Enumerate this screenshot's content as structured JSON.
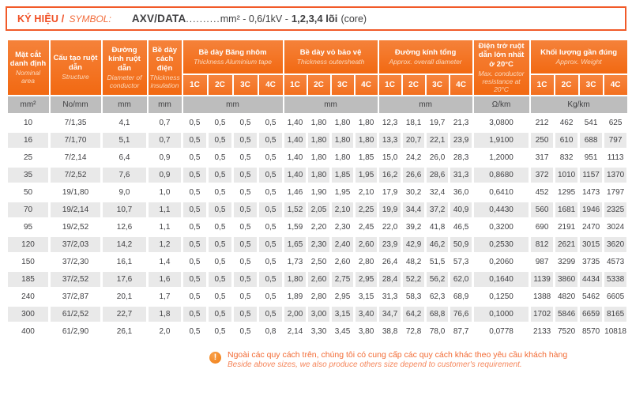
{
  "title": {
    "label_vi": "KÝ HIỆU /",
    "label_en": "SYMBOL:",
    "code": "AXV/DATA",
    "dots": "..........",
    "spec": "mm² - 0,6/1kV -",
    "cores": "1,2,3,4 lõi",
    "core_suffix": "(core)"
  },
  "table": {
    "columns": [
      {
        "vi": "Mặt cắt danh định",
        "en": "Nominal area",
        "unit": "mm²"
      },
      {
        "vi": "Cấu tạo ruột dẫn",
        "en": "Structure",
        "unit": "No/mm"
      },
      {
        "vi": "Đường kính ruột dẫn",
        "en": "Diameter of conductor",
        "unit": "mm"
      },
      {
        "vi": "Bề dày cách điện",
        "en": "Thickness insulation",
        "unit": "mm"
      },
      {
        "vi": "Bề dày Băng nhôm",
        "en": "Thickness Aluminium tape",
        "unit": "mm",
        "sub": [
          "1C",
          "2C",
          "3C",
          "4C"
        ]
      },
      {
        "vi": "Bề dày vỏ bảo vệ",
        "en": "Thickness outersheath",
        "unit": "mm",
        "sub": [
          "1C",
          "2C",
          "3C",
          "4C"
        ]
      },
      {
        "vi": "Đường kính tổng",
        "en": "Approx. overall diameter",
        "unit": "mm",
        "sub": [
          "1C",
          "2C",
          "3C",
          "4C"
        ]
      },
      {
        "vi": "Điện trở ruột dẫn lớn nhất ở 20°C",
        "en": "Max. conductor resistance at 20°C",
        "unit": "Ω/km"
      },
      {
        "vi": "Khối lượng gần đúng",
        "en": "Approx. Weight",
        "unit": "Kg/km",
        "sub": [
          "1C",
          "2C",
          "3C",
          "4C"
        ]
      }
    ],
    "rows": [
      [
        "10",
        "7/1,35",
        "4,1",
        "0,7",
        "0,5",
        "0,5",
        "0,5",
        "0,5",
        "1,40",
        "1,80",
        "1,80",
        "1,80",
        "12,3",
        "18,1",
        "19,7",
        "21,3",
        "3,0800",
        "212",
        "462",
        "541",
        "625"
      ],
      [
        "16",
        "7/1,70",
        "5,1",
        "0,7",
        "0,5",
        "0,5",
        "0,5",
        "0,5",
        "1,40",
        "1,80",
        "1,80",
        "1,80",
        "13,3",
        "20,7",
        "22,1",
        "23,9",
        "1,9100",
        "250",
        "610",
        "688",
        "797"
      ],
      [
        "25",
        "7/2,14",
        "6,4",
        "0,9",
        "0,5",
        "0,5",
        "0,5",
        "0,5",
        "1,40",
        "1,80",
        "1,80",
        "1,85",
        "15,0",
        "24,2",
        "26,0",
        "28,3",
        "1,2000",
        "317",
        "832",
        "951",
        "1113"
      ],
      [
        "35",
        "7/2,52",
        "7,6",
        "0,9",
        "0,5",
        "0,5",
        "0,5",
        "0,5",
        "1,40",
        "1,80",
        "1,85",
        "1,95",
        "16,2",
        "26,6",
        "28,6",
        "31,3",
        "0,8680",
        "372",
        "1010",
        "1157",
        "1370"
      ],
      [
        "50",
        "19/1,80",
        "9,0",
        "1,0",
        "0,5",
        "0,5",
        "0,5",
        "0,5",
        "1,46",
        "1,90",
        "1,95",
        "2,10",
        "17,9",
        "30,2",
        "32,4",
        "36,0",
        "0,6410",
        "452",
        "1295",
        "1473",
        "1797"
      ],
      [
        "70",
        "19/2,14",
        "10,7",
        "1,1",
        "0,5",
        "0,5",
        "0,5",
        "0,5",
        "1,52",
        "2,05",
        "2,10",
        "2,25",
        "19,9",
        "34,4",
        "37,2",
        "40,9",
        "0,4430",
        "560",
        "1681",
        "1946",
        "2325"
      ],
      [
        "95",
        "19/2,52",
        "12,6",
        "1,1",
        "0,5",
        "0,5",
        "0,5",
        "0,5",
        "1,59",
        "2,20",
        "2,30",
        "2,45",
        "22,0",
        "39,2",
        "41,8",
        "46,5",
        "0,3200",
        "690",
        "2191",
        "2470",
        "3024"
      ],
      [
        "120",
        "37/2,03",
        "14,2",
        "1,2",
        "0,5",
        "0,5",
        "0,5",
        "0,5",
        "1,65",
        "2,30",
        "2,40",
        "2,60",
        "23,9",
        "42,9",
        "46,2",
        "50,9",
        "0,2530",
        "812",
        "2621",
        "3015",
        "3620"
      ],
      [
        "150",
        "37/2,30",
        "16,1",
        "1,4",
        "0,5",
        "0,5",
        "0,5",
        "0,5",
        "1,73",
        "2,50",
        "2,60",
        "2,80",
        "26,4",
        "48,2",
        "51,5",
        "57,3",
        "0,2060",
        "987",
        "3299",
        "3735",
        "4573"
      ],
      [
        "185",
        "37/2,52",
        "17,6",
        "1,6",
        "0,5",
        "0,5",
        "0,5",
        "0,5",
        "1,80",
        "2,60",
        "2,75",
        "2,95",
        "28,4",
        "52,2",
        "56,2",
        "62,0",
        "0,1640",
        "1139",
        "3860",
        "4434",
        "5338"
      ],
      [
        "240",
        "37/2,87",
        "20,1",
        "1,7",
        "0,5",
        "0,5",
        "0,5",
        "0,5",
        "1,89",
        "2,80",
        "2,95",
        "3,15",
        "31,3",
        "58,3",
        "62,3",
        "68,9",
        "0,1250",
        "1388",
        "4820",
        "5462",
        "6605"
      ],
      [
        "300",
        "61/2,52",
        "22,7",
        "1,8",
        "0,5",
        "0,5",
        "0,5",
        "0,5",
        "2,00",
        "3,00",
        "3,15",
        "3,40",
        "34,7",
        "64,2",
        "68,8",
        "76,6",
        "0,1000",
        "1702",
        "5846",
        "6659",
        "8165"
      ],
      [
        "400",
        "61/2,90",
        "26,1",
        "2,0",
        "0,5",
        "0,5",
        "0,5",
        "0,8",
        "2,14",
        "3,30",
        "3,45",
        "3,80",
        "38,8",
        "72,8",
        "78,0",
        "87,7",
        "0,0778",
        "2133",
        "7520",
        "8570",
        "10818"
      ]
    ]
  },
  "note": {
    "vi": "Ngoài các quy cách trên, chúng tôi có cung cấp các quy cách khác theo yêu cầu khách hàng",
    "en": "Beside above sizes, we also produce others size depend to customer's requirement."
  },
  "icons": {
    "warning": "!"
  },
  "colors": {
    "header_orange": "#F3701F",
    "accent_red_orange": "#F15A29",
    "unit_gray": "#BDBDBD",
    "row_alt_gray": "#E9E9E9"
  }
}
